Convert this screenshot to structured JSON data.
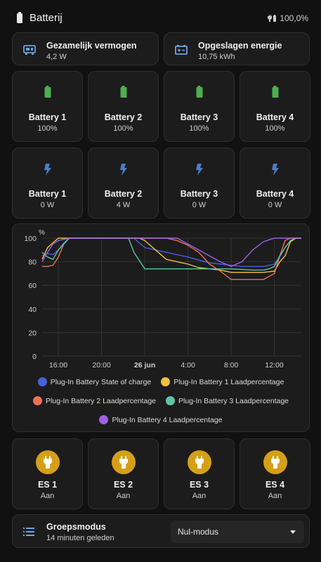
{
  "header": {
    "title": "Batterij",
    "status": "100,0%"
  },
  "summary": [
    {
      "name": "Gezamelijk vermogen",
      "value": "4,2 W",
      "icon": "transfer-icon"
    },
    {
      "name": "Opgeslagen energie",
      "value": "10,75 kWh",
      "icon": "battery-charge-icon"
    }
  ],
  "battery_levels": [
    {
      "name": "Battery 1",
      "value": "100%"
    },
    {
      "name": "Battery 2",
      "value": "100%"
    },
    {
      "name": "Battery 3",
      "value": "100%"
    },
    {
      "name": "Battery 4",
      "value": "100%"
    }
  ],
  "battery_power": [
    {
      "name": "Battery 1",
      "value": "0 W"
    },
    {
      "name": "Battery 2",
      "value": "4 W"
    },
    {
      "name": "Battery 3",
      "value": "0 W"
    },
    {
      "name": "Battery 4",
      "value": "0 W"
    }
  ],
  "chart_data": {
    "type": "line",
    "ylabel": "%",
    "ylim": [
      0,
      100
    ],
    "yticks": [
      "0",
      "20",
      "40",
      "60",
      "80",
      "100"
    ],
    "xticks": [
      "16:00",
      "20:00",
      "26 jun",
      "4:00",
      "8:00",
      "12:00"
    ],
    "xlim_hours": [
      14.5,
      38.5
    ],
    "grid": true,
    "legend_position": "bottom",
    "series": [
      {
        "name": "Plug-In Battery State of charge",
        "color": "#4a60d8",
        "x": [
          14.5,
          15.0,
          15.5,
          16.0,
          16.5,
          17,
          20,
          22,
          23,
          24,
          26,
          28,
          30,
          32,
          33,
          34,
          35,
          36,
          36.5,
          37,
          37.5,
          38,
          38.5
        ],
        "y": [
          85,
          87,
          86,
          90,
          96,
          100,
          100,
          100,
          100,
          92,
          88,
          84,
          79,
          77,
          76,
          76,
          76,
          78,
          84,
          92,
          98,
          100,
          100
        ]
      },
      {
        "name": "Plug-In Battery 1 Laadpercentage",
        "color": "#f0c040",
        "x": [
          14.5,
          15,
          15.5,
          16,
          17,
          20,
          22,
          23,
          23.5,
          24,
          25,
          26,
          28,
          29,
          31,
          32,
          34,
          35,
          36,
          36.5,
          37,
          37.5,
          38,
          38.5
        ],
        "y": [
          82,
          92,
          96,
          100,
          100,
          100,
          100,
          100,
          100,
          98,
          90,
          82,
          78,
          75,
          73,
          71,
          71,
          71,
          72,
          80,
          85,
          97,
          100,
          100
        ]
      },
      {
        "name": "Plug-In Battery 2 Laadpercentage",
        "color": "#f07050",
        "x": [
          14.5,
          15,
          15.5,
          16,
          16.5,
          17,
          20,
          22,
          23.5,
          24,
          26,
          27,
          28,
          29,
          30,
          31,
          32,
          34,
          35,
          36,
          36.5,
          37,
          37.5,
          38,
          38.5
        ],
        "y": [
          76,
          76,
          77,
          84,
          95,
          100,
          100,
          100,
          100,
          100,
          100,
          98,
          94,
          88,
          78,
          72,
          65,
          65,
          65,
          70,
          85,
          98,
          100,
          100,
          100
        ]
      },
      {
        "name": "Plug-In Battery 3 Laadpercentage",
        "color": "#5ec4a8",
        "x": [
          14.5,
          15,
          15.5,
          16,
          17,
          20,
          22,
          22.5,
          23,
          24,
          26,
          28,
          30,
          31,
          32,
          34,
          35,
          35.5,
          36,
          36.5,
          37,
          37.5,
          38,
          38.5
        ],
        "y": [
          88,
          84,
          82,
          90,
          100,
          100,
          100,
          100,
          88,
          74,
          74,
          74,
          74,
          74,
          74,
          73,
          73,
          74,
          76,
          85,
          92,
          98,
          100,
          100
        ]
      },
      {
        "name": "Plug-In Battery 4 Laadpercentage",
        "color": "#a060e8",
        "x": [
          14.5,
          15,
          15.5,
          16,
          17,
          20,
          22,
          24,
          26,
          27,
          28,
          29,
          30,
          31,
          32,
          33,
          34,
          35,
          36,
          36.5,
          37,
          37.5,
          38,
          38.5
        ],
        "y": [
          80,
          88,
          95,
          98,
          100,
          100,
          100,
          100,
          100,
          100,
          95,
          90,
          85,
          80,
          76,
          80,
          90,
          97,
          100,
          100,
          100,
          100,
          100,
          100
        ]
      }
    ]
  },
  "sockets": [
    {
      "name": "ES 1",
      "value": "Aan"
    },
    {
      "name": "ES 2",
      "value": "Aan"
    },
    {
      "name": "ES 3",
      "value": "Aan"
    },
    {
      "name": "ES 4",
      "value": "Aan"
    }
  ],
  "mode": {
    "name": "Groepsmodus",
    "value": "14 minuten geleden",
    "selected": "Nul-modus"
  },
  "colors": {
    "battery_green": "#4caf50",
    "bolt_blue": "#4a7fc4",
    "plug_amber": "#d4a017",
    "card_bg": "#1c1c1c"
  }
}
